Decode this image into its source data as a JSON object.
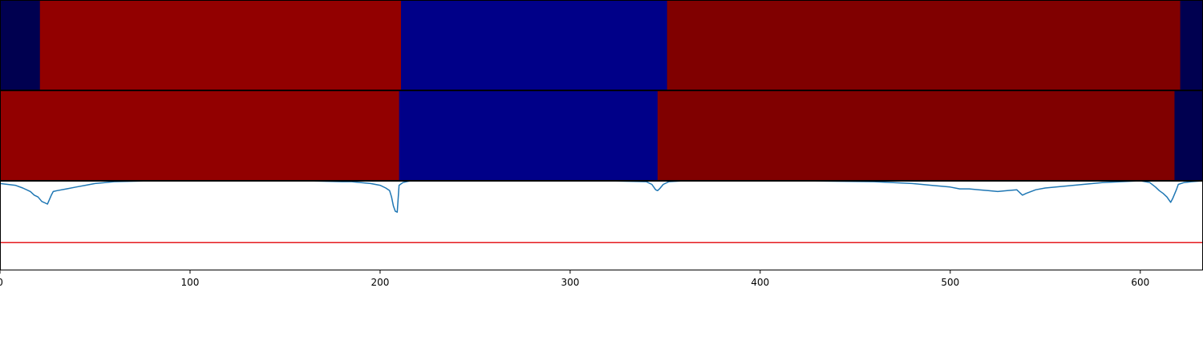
{
  "chart_data": [
    {
      "type": "heatmap",
      "row": "top-bar",
      "segments": [
        {
          "start": 0,
          "end": 21,
          "color": "#000050"
        },
        {
          "start": 21,
          "end": 211,
          "color": "#920000"
        },
        {
          "start": 211,
          "end": 351,
          "color": "#000088"
        },
        {
          "start": 351,
          "end": 621,
          "color": "#800000"
        },
        {
          "start": 621,
          "end": 633,
          "color": "#000050"
        }
      ]
    },
    {
      "type": "heatmap",
      "row": "middle-bar",
      "segments": [
        {
          "start": 0,
          "end": 210,
          "color": "#920000"
        },
        {
          "start": 210,
          "end": 346,
          "color": "#000088"
        },
        {
          "start": 346,
          "end": 618,
          "color": "#800000"
        },
        {
          "start": 618,
          "end": 633,
          "color": "#000050"
        }
      ]
    },
    {
      "type": "line",
      "xlim": [
        0,
        633
      ],
      "ylim": [
        0,
        1
      ],
      "xticks": [
        0,
        100,
        200,
        300,
        400,
        500,
        600
      ],
      "xtick_labels": [
        "0",
        "100",
        "200",
        "300",
        "400",
        "500",
        "600"
      ],
      "threshold": 0.31,
      "threshold_color": "#e41a1c",
      "series_color": "#1f77b4",
      "x": [
        0,
        4,
        8,
        12,
        16,
        18,
        20,
        22,
        24,
        25,
        27,
        28,
        30,
        35,
        40,
        45,
        50,
        60,
        80,
        120,
        160,
        180,
        185,
        190,
        195,
        200,
        203,
        205,
        206,
        207,
        208,
        209,
        210,
        212,
        216,
        220,
        240,
        280,
        300,
        320,
        340,
        343,
        345,
        346,
        347,
        349,
        352,
        360,
        380,
        420,
        460,
        480,
        490,
        500,
        505,
        510,
        515,
        520,
        525,
        530,
        535,
        537,
        538,
        540,
        545,
        550,
        560,
        570,
        580,
        590,
        600,
        605,
        608,
        610,
        612,
        614,
        616,
        617,
        619,
        620,
        623,
        627,
        633
      ],
      "y": [
        0.97,
        0.96,
        0.95,
        0.92,
        0.88,
        0.84,
        0.82,
        0.77,
        0.75,
        0.74,
        0.84,
        0.88,
        0.89,
        0.91,
        0.93,
        0.95,
        0.97,
        0.99,
        1.0,
        1.0,
        1.0,
        0.99,
        0.99,
        0.98,
        0.97,
        0.95,
        0.92,
        0.89,
        0.82,
        0.72,
        0.66,
        0.65,
        0.95,
        0.98,
        1.0,
        1.0,
        1.0,
        1.0,
        1.0,
        1.0,
        0.99,
        0.96,
        0.9,
        0.89,
        0.91,
        0.96,
        0.99,
        1.0,
        1.0,
        1.0,
        0.99,
        0.97,
        0.95,
        0.93,
        0.91,
        0.91,
        0.9,
        0.89,
        0.88,
        0.89,
        0.9,
        0.86,
        0.84,
        0.86,
        0.9,
        0.92,
        0.94,
        0.96,
        0.98,
        0.99,
        1.0,
        0.98,
        0.93,
        0.89,
        0.86,
        0.82,
        0.76,
        0.8,
        0.9,
        0.96,
        0.98,
        0.99,
        1.0
      ]
    }
  ]
}
